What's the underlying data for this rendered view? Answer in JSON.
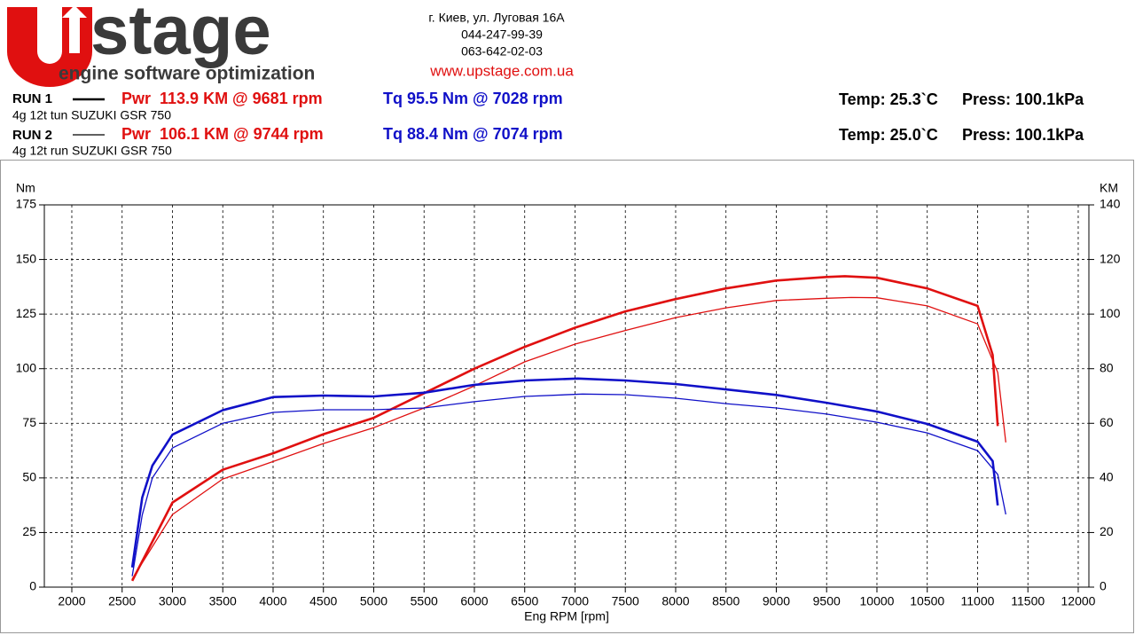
{
  "header": {
    "logo": "stage",
    "tagline": "engine software optimization",
    "address": [
      "г. Киев, ул. Луговая 16А",
      "044-247-99-39",
      "063-642-02-03"
    ],
    "website": "www.upstage.com.ua",
    "runs": [
      {
        "label": "RUN 1",
        "power": "Pwr  113.9 KM @ 9681 rpm",
        "torque": "Tq 95.5 Nm @ 7028 rpm",
        "description": "4g 12t tun SUZUKI GSR 750",
        "temp": "Temp: 25.3`C",
        "press": "Press: 100.1kPa"
      },
      {
        "label": "RUN 2",
        "power": "Pwr  106.1 KM @ 9744 rpm",
        "torque": "Tq 88.4 Nm @ 7074 rpm",
        "description": "4g 12t run SUZUKI GSR 750",
        "temp": "Temp: 25.0`C",
        "press": "Press: 100.1kPa"
      }
    ]
  },
  "chart_data": {
    "type": "line",
    "y_label": "Nm",
    "y2_label": "KM",
    "x_label": "Eng RPM [rpm]",
    "xlim": [
      1727,
      12106
    ],
    "xticks": [
      2000,
      2500,
      3000,
      3500,
      4000,
      4500,
      5000,
      5500,
      6000,
      6500,
      7000,
      7500,
      8000,
      8500,
      9000,
      9500,
      10000,
      10500,
      11000,
      11500,
      12000
    ],
    "ylim": [
      0,
      175
    ],
    "yticks": [
      0,
      25,
      50,
      75,
      100,
      125,
      150,
      175
    ],
    "y2lim": [
      0,
      140
    ],
    "y2ticks": [
      0,
      20,
      40,
      60,
      80,
      100,
      120,
      140
    ],
    "grid": true,
    "series": [
      {
        "color": "#e01010",
        "axis": "y2",
        "x": [
          2600,
          3000,
          3500,
          4000,
          4500,
          5000,
          5500,
          6000,
          6500,
          7000,
          7500,
          8000,
          8500,
          9000,
          9500,
          9681,
          10000,
          10500,
          11000,
          11150,
          11200
        ],
        "values": [
          2.3,
          31,
          43,
          49,
          56,
          62,
          71,
          80,
          88,
          95,
          101,
          105.5,
          109.4,
          112.3,
          113.6,
          113.9,
          113.3,
          109.4,
          103,
          85,
          59
        ]
      },
      {
        "color": "#e01010",
        "axis": "y2",
        "x": [
          2600,
          3000,
          3500,
          4000,
          4500,
          5000,
          5500,
          6000,
          6500,
          7000,
          7500,
          8000,
          8500,
          9000,
          9500,
          9744,
          10000,
          10500,
          11000,
          11200,
          11280
        ],
        "values": [
          3,
          26.6,
          39.6,
          46,
          52.6,
          58.4,
          65.6,
          73.7,
          82.5,
          89,
          94,
          98.7,
          102.3,
          105,
          105.8,
          106.1,
          106,
          103,
          96.4,
          78.6,
          53
        ]
      },
      {
        "color": "#1010c8",
        "axis": "y",
        "x": [
          2600,
          2700,
          2800,
          3000,
          3500,
          4000,
          4500,
          5000,
          5500,
          6000,
          6500,
          7028,
          7500,
          8000,
          8500,
          9000,
          9500,
          10000,
          10500,
          11000,
          11150,
          11200
        ],
        "values": [
          9,
          41,
          55.6,
          69.8,
          81,
          87,
          87.7,
          87.3,
          89,
          92.6,
          94.6,
          95.5,
          94.6,
          93,
          90.5,
          88,
          84.4,
          80.4,
          74.7,
          66.6,
          57.7,
          37.4
        ]
      },
      {
        "color": "#1010c8",
        "axis": "y",
        "x": [
          2600,
          2700,
          2800,
          3000,
          3500,
          4000,
          4500,
          5000,
          5500,
          6000,
          6500,
          7074,
          7500,
          8000,
          8500,
          9000,
          9500,
          10000,
          10500,
          11000,
          11200,
          11280
        ],
        "values": [
          5,
          33,
          50,
          63.7,
          75,
          80,
          81.2,
          81.2,
          82,
          84.9,
          87.3,
          88.4,
          88.1,
          86.5,
          84,
          82,
          79.2,
          75.5,
          70.6,
          62.5,
          51.6,
          33.3
        ]
      }
    ]
  }
}
